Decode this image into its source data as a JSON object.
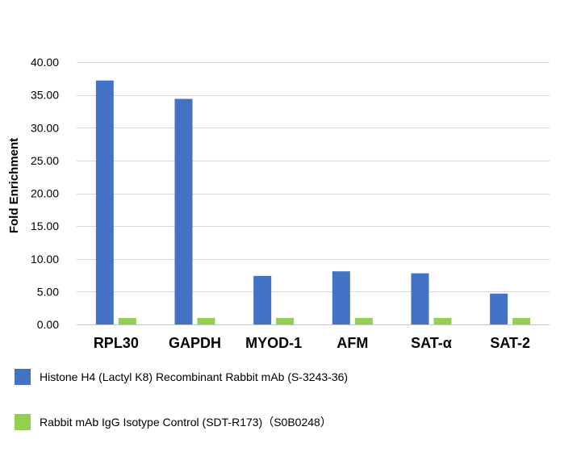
{
  "chart_data": {
    "type": "bar",
    "ylabel": "Fold Enrichment",
    "ylim": [
      0,
      40
    ],
    "yticks": [
      "0.00",
      "5.00",
      "10.00",
      "15.00",
      "20.00",
      "25.00",
      "30.00",
      "35.00",
      "40.00"
    ],
    "grid": true,
    "legend_position": "bottom",
    "categories": [
      "RPL30",
      "GAPDH",
      "MYOD-1",
      "AFM",
      "SAT-α",
      "SAT-2"
    ],
    "series": [
      {
        "name": "Histone H4 (Lactyl K8) Recombinant Rabbit mAb (S-3243-36)",
        "color": "#4472C4",
        "values": [
          37.2,
          34.4,
          7.4,
          8.1,
          7.8,
          4.7
        ]
      },
      {
        "name": "Rabbit mAb IgG Isotype Control (SDT-R173)（S0B0248）",
        "color": "#92D050",
        "values": [
          1.0,
          1.0,
          1.0,
          1.0,
          1.0,
          1.0
        ]
      }
    ]
  }
}
